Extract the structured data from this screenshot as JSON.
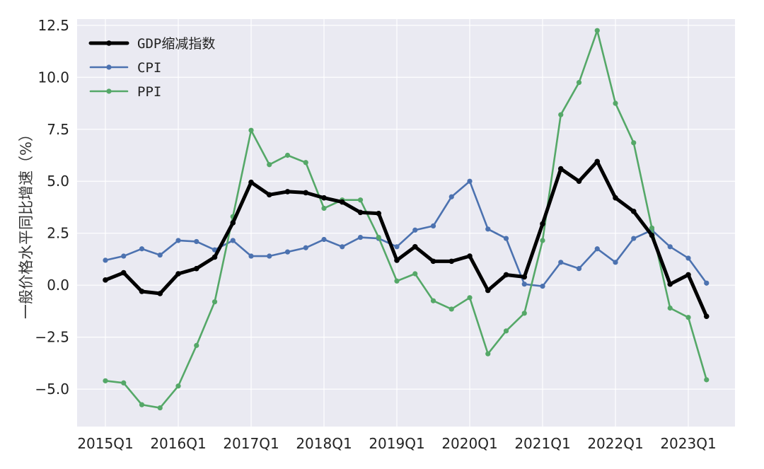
{
  "chart_data": {
    "type": "line",
    "ylabel": "一般价格水平同比增速（%）",
    "xlabel": "",
    "title": "",
    "ylim": [
      -6.8,
      12.8
    ],
    "yticks": [
      -5.0,
      -2.5,
      0.0,
      2.5,
      5.0,
      7.5,
      10.0,
      12.5
    ],
    "ytick_labels": [
      "−5.0",
      "−2.5",
      "0.0",
      "2.5",
      "5.0",
      "7.5",
      "10.0",
      "12.5"
    ],
    "grid": true,
    "legend_position": "top-left",
    "xtick_labels": [
      "2015Q1",
      "2016Q1",
      "2017Q1",
      "2018Q1",
      "2019Q1",
      "2020Q1",
      "2021Q1",
      "2022Q1",
      "2023Q1"
    ],
    "x": [
      "2015Q1",
      "2015Q2",
      "2015Q3",
      "2015Q4",
      "2016Q1",
      "2016Q2",
      "2016Q3",
      "2016Q4",
      "2017Q1",
      "2017Q2",
      "2017Q3",
      "2017Q4",
      "2018Q1",
      "2018Q2",
      "2018Q3",
      "2018Q4",
      "2019Q1",
      "2019Q2",
      "2019Q3",
      "2019Q4",
      "2020Q1",
      "2020Q2",
      "2020Q3",
      "2020Q4",
      "2021Q1",
      "2021Q2",
      "2021Q3",
      "2021Q4",
      "2022Q1",
      "2022Q2",
      "2022Q3",
      "2022Q4",
      "2023Q1",
      "2023Q2"
    ],
    "series": [
      {
        "name": "GDP缩减指数",
        "color": "#000000",
        "values": [
          0.25,
          0.6,
          -0.3,
          -0.4,
          0.55,
          0.8,
          1.35,
          3.0,
          4.95,
          4.35,
          4.5,
          4.45,
          4.2,
          4.0,
          3.5,
          3.45,
          1.2,
          1.85,
          1.15,
          1.15,
          1.4,
          -0.25,
          0.5,
          0.4,
          2.95,
          5.6,
          5.0,
          5.95,
          4.2,
          3.55,
          2.4,
          0.05,
          0.5,
          -1.5
        ]
      },
      {
        "name": "CPI",
        "color": "#4c72b0",
        "values": [
          1.2,
          1.4,
          1.75,
          1.45,
          2.15,
          2.1,
          1.7,
          2.15,
          1.4,
          1.4,
          1.6,
          1.8,
          2.2,
          1.85,
          2.3,
          2.25,
          1.85,
          2.65,
          2.85,
          4.25,
          5.0,
          2.7,
          2.25,
          0.05,
          -0.05,
          1.1,
          0.8,
          1.75,
          1.1,
          2.25,
          2.65,
          1.85,
          1.3,
          0.1
        ]
      },
      {
        "name": "PPI",
        "color": "#55a868",
        "values": [
          -4.6,
          -4.7,
          -5.75,
          -5.9,
          -4.85,
          -2.9,
          -0.8,
          3.3,
          7.45,
          5.8,
          6.25,
          5.9,
          3.7,
          4.1,
          4.1,
          2.3,
          0.2,
          0.55,
          -0.75,
          -1.15,
          -0.6,
          -3.3,
          -2.2,
          -1.35,
          2.15,
          8.2,
          9.75,
          12.25,
          8.75,
          6.85,
          2.75,
          -1.1,
          -1.55,
          -4.55
        ]
      }
    ]
  }
}
